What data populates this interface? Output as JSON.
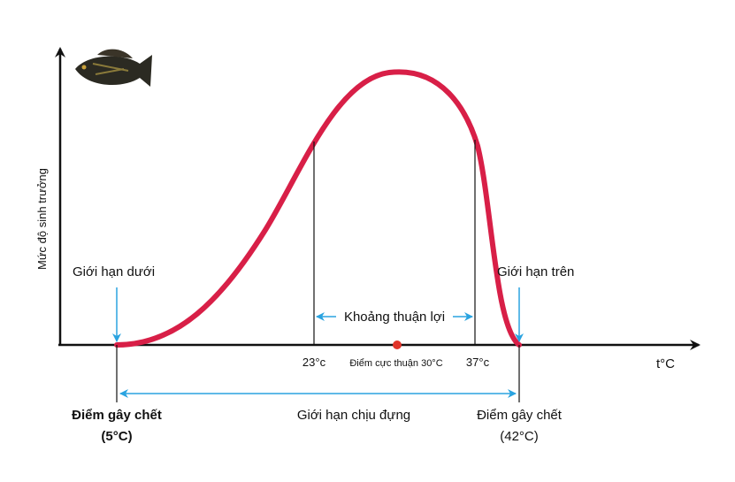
{
  "y_axis_label": "Mức độ sinh trưởng",
  "x_axis_label": "t°C",
  "lower_limit": "Giới hạn dưới",
  "upper_limit": "Giới hạn trên",
  "favorable_range": "Khoảng thuận lợi",
  "tick_left": "23°c",
  "tick_right": "37°c",
  "optimum": "Điểm cực thuận 30°C",
  "lethal_low": {
    "line1": "Điểm gây chết",
    "line2": "(5°C)"
  },
  "tolerance_range": "Giới hạn chịu đựng",
  "lethal_high": {
    "line1": "Điểm gây chết",
    "line2": "(42°C)"
  }
}
